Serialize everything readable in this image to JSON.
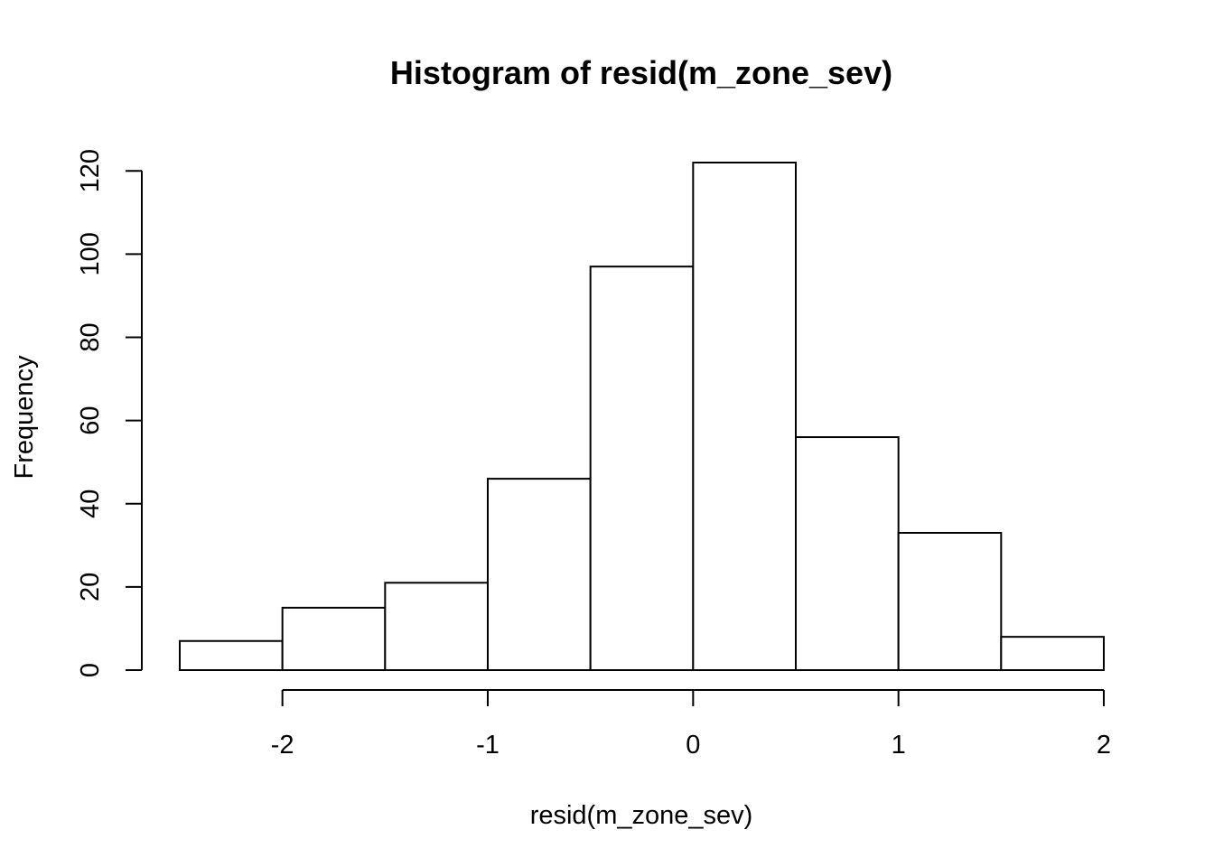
{
  "chart_data": {
    "type": "bar",
    "title": "Histogram of resid(m_zone_sev)",
    "xlabel": "resid(m_zone_sev)",
    "ylabel": "Frequency",
    "bins": [
      {
        "x0": -2.5,
        "x1": -2.0,
        "count": 7
      },
      {
        "x0": -2.0,
        "x1": -1.5,
        "count": 15
      },
      {
        "x0": -1.5,
        "x1": -1.0,
        "count": 21
      },
      {
        "x0": -1.0,
        "x1": -0.5,
        "count": 46
      },
      {
        "x0": -0.5,
        "x1": 0.0,
        "count": 97
      },
      {
        "x0": 0.0,
        "x1": 0.5,
        "count": 122
      },
      {
        "x0": 0.5,
        "x1": 1.0,
        "count": 56
      },
      {
        "x0": 1.0,
        "x1": 1.5,
        "count": 33
      },
      {
        "x0": 1.5,
        "x1": 2.0,
        "count": 8
      }
    ],
    "xticks": [
      -2,
      -1,
      0,
      1,
      2
    ],
    "xtick_labels": [
      "-2",
      "-1",
      "0",
      "1",
      "2"
    ],
    "yticks": [
      0,
      20,
      40,
      60,
      80,
      100,
      120
    ],
    "ytick_labels": [
      "0",
      "20",
      "40",
      "60",
      "80",
      "100",
      "120"
    ],
    "xlim": [
      -2.5,
      2.0
    ],
    "ylim": [
      0,
      122
    ],
    "grid": false,
    "colors": {
      "bar_fill": "#ffffff",
      "bar_stroke": "#000000"
    }
  }
}
